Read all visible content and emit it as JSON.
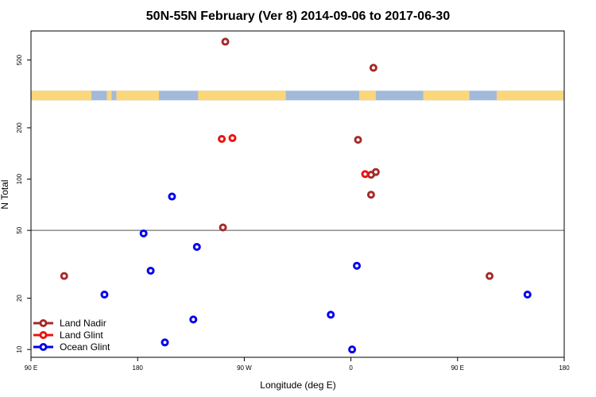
{
  "chart_data": {
    "type": "scatter",
    "title": "50N-55N February (Ver 8)   2014-09-06 to 2017-06-30",
    "xlabel": "Longitude (deg E)",
    "ylabel": "N Total",
    "x_range": [
      90,
      540
    ],
    "y_scale": "log",
    "ylim": [
      9,
      740
    ],
    "x_ticks": [
      {
        "value": 90,
        "label": "90 E"
      },
      {
        "value": 180,
        "label": "180"
      },
      {
        "value": 270,
        "label": "90 W"
      },
      {
        "value": 360,
        "label": "0"
      },
      {
        "value": 450,
        "label": "90 E"
      },
      {
        "value": 540,
        "label": "180"
      }
    ],
    "y_ticks": [
      10,
      20,
      50,
      100,
      200,
      500
    ],
    "reference_line": 50,
    "land_band": {
      "y_range": [
        290,
        330
      ],
      "land_color": "#fbd77a",
      "ocean_color": "#a3b9d9",
      "land_segments": [
        [
          90,
          141
        ],
        [
          154,
          158
        ],
        [
          162,
          198
        ],
        [
          231,
          305
        ],
        [
          367,
          381
        ],
        [
          421,
          460
        ],
        [
          483,
          540
        ]
      ]
    },
    "legend_position": "bottom-left",
    "series": [
      {
        "name": "Land Nadir",
        "color": "#a52a2a",
        "points": [
          [
            118,
            27
          ],
          [
            252,
            52
          ],
          [
            254,
            640
          ],
          [
            366,
            170
          ],
          [
            377,
            81
          ],
          [
            377,
            106
          ],
          [
            381,
            110
          ],
          [
            379,
            450
          ],
          [
            477,
            27
          ]
        ]
      },
      {
        "name": "Land Glint",
        "color": "#ee1111",
        "points": [
          [
            251,
            172
          ],
          [
            260,
            174
          ],
          [
            372,
            107
          ]
        ]
      },
      {
        "name": "Ocean Glint",
        "color": "#0000ee",
        "points": [
          [
            152,
            21
          ],
          [
            185,
            48
          ],
          [
            191,
            29
          ],
          [
            209,
            79
          ],
          [
            203,
            11
          ],
          [
            227,
            15
          ],
          [
            230,
            40
          ],
          [
            343,
            16
          ],
          [
            361,
            10
          ],
          [
            365,
            31
          ],
          [
            509,
            21
          ]
        ]
      }
    ]
  }
}
